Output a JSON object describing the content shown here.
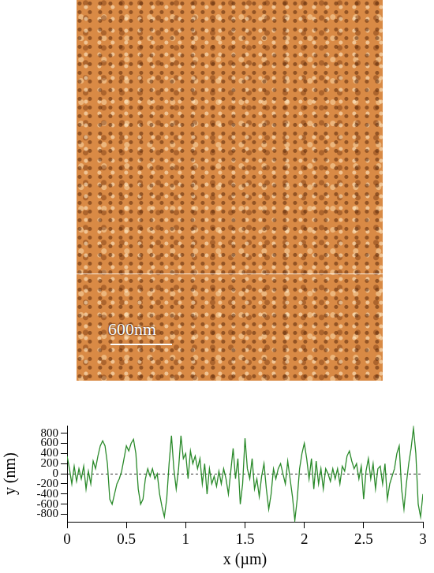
{
  "image": {
    "scale_bar": "600nm"
  },
  "chart_data": {
    "type": "line",
    "x_label": "x (µm)",
    "y_label": "y (nm)",
    "x": [
      0,
      0.02,
      0.04,
      0.06,
      0.08,
      0.1,
      0.12,
      0.14,
      0.16,
      0.18,
      0.2,
      0.22,
      0.24,
      0.26,
      0.28,
      0.3,
      0.32,
      0.34,
      0.36,
      0.38,
      0.4,
      0.42,
      0.44,
      0.46,
      0.48,
      0.5,
      0.52,
      0.54,
      0.56,
      0.58,
      0.6,
      0.62,
      0.64,
      0.66,
      0.68,
      0.7,
      0.72,
      0.74,
      0.76,
      0.78,
      0.8,
      0.82,
      0.84,
      0.86,
      0.88,
      0.9,
      0.92,
      0.94,
      0.96,
      0.98,
      1.0,
      1.02,
      1.04,
      1.06,
      1.08,
      1.1,
      1.12,
      1.14,
      1.16,
      1.18,
      1.2,
      1.22,
      1.24,
      1.26,
      1.28,
      1.3,
      1.32,
      1.34,
      1.36,
      1.38,
      1.4,
      1.42,
      1.44,
      1.46,
      1.48,
      1.5,
      1.52,
      1.54,
      1.56,
      1.58,
      1.6,
      1.62,
      1.64,
      1.66,
      1.68,
      1.7,
      1.72,
      1.74,
      1.76,
      1.78,
      1.8,
      1.82,
      1.84,
      1.86,
      1.88,
      1.9,
      1.92,
      1.94,
      1.96,
      1.98,
      2.0,
      2.02,
      2.04,
      2.06,
      2.08,
      2.1,
      2.12,
      2.14,
      2.16,
      2.18,
      2.2,
      2.22,
      2.24,
      2.26,
      2.28,
      2.3,
      2.32,
      2.34,
      2.36,
      2.38,
      2.4,
      2.42,
      2.44,
      2.46,
      2.48,
      2.5,
      2.52,
      2.54,
      2.56,
      2.58,
      2.6,
      2.62,
      2.64,
      2.66,
      2.68,
      2.7,
      2.72,
      2.74,
      2.76,
      2.78,
      2.8,
      2.82,
      2.84,
      2.86,
      2.88,
      2.9,
      2.92,
      2.94,
      2.96,
      2.98,
      3.0
    ],
    "values": [
      350,
      100,
      -200,
      150,
      -150,
      100,
      -100,
      150,
      -300,
      50,
      -200,
      250,
      100,
      350,
      550,
      650,
      550,
      200,
      -500,
      -600,
      -400,
      -200,
      -100,
      50,
      300,
      550,
      450,
      600,
      680,
      400,
      -300,
      -600,
      -500,
      -100,
      100,
      -50,
      100,
      -100,
      0,
      -400,
      -650,
      -850,
      -500,
      200,
      750,
      100,
      -300,
      100,
      750,
      300,
      400,
      -100,
      450,
      200,
      350,
      100,
      300,
      -200,
      200,
      -400,
      100,
      -200,
      -50,
      -250,
      50,
      -200,
      100,
      -100,
      -400,
      50,
      500,
      -100,
      300,
      -600,
      -200,
      700,
      100,
      -100,
      300,
      -300,
      -100,
      -450,
      -50,
      200,
      -300,
      -700,
      -400,
      100,
      -100,
      100,
      200,
      0,
      -200,
      250,
      -100,
      -450,
      -920,
      -500,
      100,
      400,
      600,
      300,
      -100,
      300,
      -300,
      250,
      -200,
      100,
      -300,
      100,
      0,
      -150,
      100,
      -100,
      100,
      -200,
      150,
      50,
      350,
      450,
      250,
      100,
      200,
      -100,
      150,
      -500,
      50,
      300,
      -100,
      200,
      -300,
      100,
      150,
      -200,
      200,
      -500,
      -200,
      -50,
      100,
      400,
      550,
      -300,
      -700,
      -200,
      200,
      500,
      900,
      400,
      -600,
      -850,
      -400
    ],
    "color": "#2a8a2a",
    "xlim": [
      0,
      3
    ],
    "xticks": [
      0,
      0.5,
      1,
      1.5,
      2,
      2.5,
      3
    ],
    "ylim": [
      -950,
      950
    ],
    "yticks": [
      -800,
      -600,
      -400,
      -200,
      0,
      200,
      400,
      600,
      800
    ],
    "grid": false,
    "line_style": "solid"
  }
}
